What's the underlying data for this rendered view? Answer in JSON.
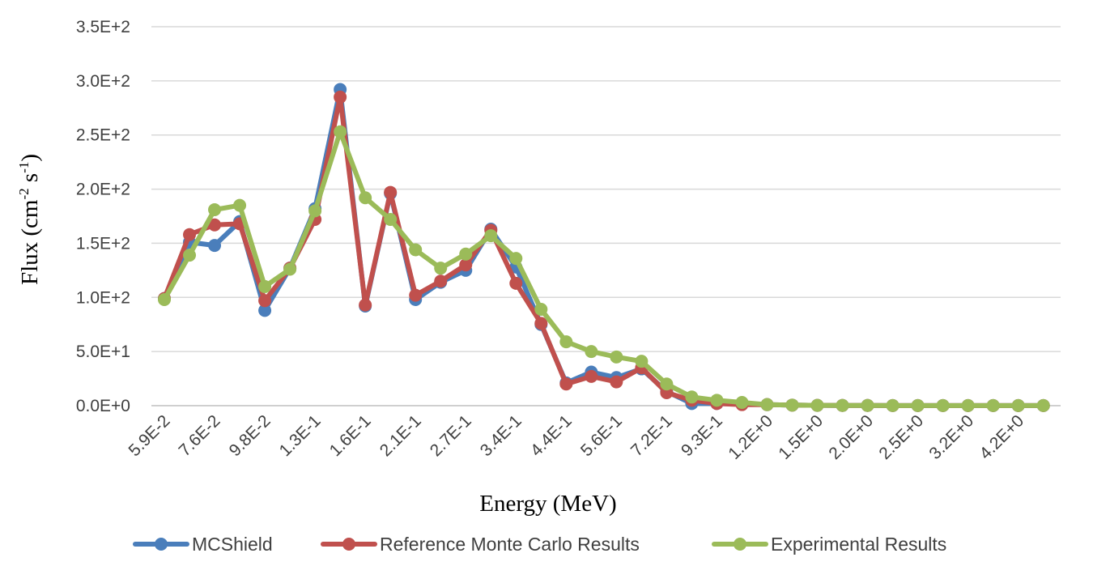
{
  "chart_data": {
    "type": "line",
    "title": "",
    "xlabel": "Energy (MeV)",
    "ylabel": {
      "base": "Flux (cm",
      "sup1": "-2",
      "mid": " s",
      "sup2": "-1",
      "end": ")"
    },
    "ylim": [
      0,
      350
    ],
    "yticks": [
      {
        "value": 0,
        "label": "0.0E+0"
      },
      {
        "value": 50,
        "label": "5.0E+1"
      },
      {
        "value": 100,
        "label": "1.0E+2"
      },
      {
        "value": 150,
        "label": "1.5E+2"
      },
      {
        "value": 200,
        "label": "2.0E+2"
      },
      {
        "value": 250,
        "label": "2.5E+2"
      },
      {
        "value": 300,
        "label": "3.0E+2"
      },
      {
        "value": 350,
        "label": "3.5E+2"
      }
    ],
    "xtick_labels": [
      {
        "index": 0,
        "label": "5.9E-2"
      },
      {
        "index": 2,
        "label": "7.6E-2"
      },
      {
        "index": 4,
        "label": "9.8E-2"
      },
      {
        "index": 6,
        "label": "1.3E-1"
      },
      {
        "index": 8,
        "label": "1.6E-1"
      },
      {
        "index": 10,
        "label": "2.1E-1"
      },
      {
        "index": 12,
        "label": "2.7E-1"
      },
      {
        "index": 14,
        "label": "3.4E-1"
      },
      {
        "index": 16,
        "label": "4.4E-1"
      },
      {
        "index": 18,
        "label": "5.6E-1"
      },
      {
        "index": 20,
        "label": "7.2E-1"
      },
      {
        "index": 22,
        "label": "9.3E-1"
      },
      {
        "index": 24,
        "label": "1.2E+0"
      },
      {
        "index": 26,
        "label": "1.5E+0"
      },
      {
        "index": 28,
        "label": "2.0E+0"
      },
      {
        "index": 30,
        "label": "2.5E+0"
      },
      {
        "index": 32,
        "label": "3.2E+0"
      },
      {
        "index": 34,
        "label": "4.2E+0"
      }
    ],
    "point_count": 36,
    "series": [
      {
        "name": "MCShield",
        "color": "#4a7ebb",
        "values": [
          99,
          151,
          148,
          170,
          88,
          127,
          182,
          292,
          92,
          196,
          98,
          114,
          125,
          163,
          128,
          75,
          21,
          31,
          26,
          34,
          13,
          2,
          2,
          2,
          1,
          0.5,
          0.3,
          0.2,
          0.2,
          0.1,
          0.1,
          0.1,
          0.1,
          0.1,
          0.1,
          0.1
        ]
      },
      {
        "name": "Reference Monte Carlo Results",
        "color": "#c0504d",
        "values": [
          99,
          158,
          167,
          168,
          97,
          127,
          172,
          285,
          93,
          197,
          102,
          115,
          130,
          162,
          113,
          76,
          20,
          27,
          22,
          35,
          12,
          5,
          2,
          1,
          1,
          0.5,
          0.3,
          0.2,
          0.2,
          0.1,
          0.1,
          0.1,
          0.1,
          0.1,
          0.1,
          0.1
        ]
      },
      {
        "name": "Experimental Results",
        "color": "#9bbb59",
        "values": [
          98,
          139,
          181,
          185,
          110,
          126,
          180,
          253,
          192,
          172,
          144,
          127,
          140,
          157,
          136,
          89,
          59,
          50,
          45,
          41,
          20,
          8,
          5,
          3,
          1,
          0.5,
          0.3,
          0.2,
          0.2,
          0.1,
          0.1,
          0.1,
          0.1,
          0.1,
          0.1,
          0.1
        ]
      }
    ],
    "legend_position": "bottom"
  }
}
